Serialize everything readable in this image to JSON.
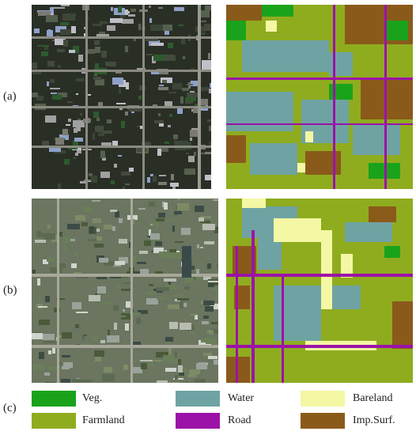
{
  "figure": {
    "rows": [
      {
        "label": "(a)"
      },
      {
        "label": "(b)"
      }
    ],
    "legend_label": "(c)"
  },
  "legend": [
    {
      "name": "Veg.",
      "color": "#1aa31a"
    },
    {
      "name": "Water",
      "color": "#6fa3a3"
    },
    {
      "name": "Bareland",
      "color": "#f4f7a3"
    },
    {
      "name": "Farmland",
      "color": "#8fac1f"
    },
    {
      "name": "Road",
      "color": "#9c12a8"
    },
    {
      "name": "Imp.Surf.",
      "color": "#8a5a1a"
    }
  ],
  "tiles": {
    "a_image": "aerial-dense-urban",
    "a_map": "landcover-map-a",
    "b_image": "aerial-farmland",
    "b_map": "landcover-map-b"
  }
}
